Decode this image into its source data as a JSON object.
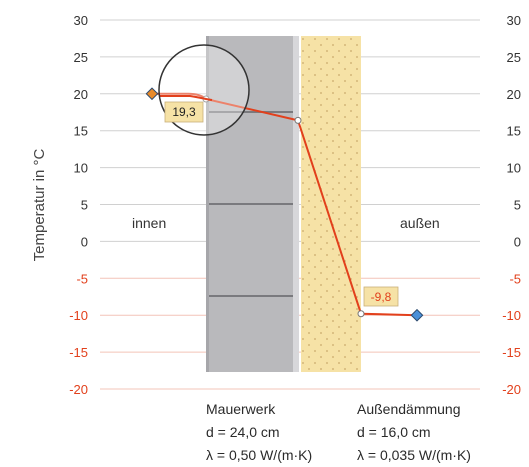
{
  "y_axis": {
    "label": "Temperatur in °C",
    "min": -20,
    "max": 30,
    "step": 5,
    "ticks": [
      "30",
      "25",
      "20",
      "15",
      "10",
      "5",
      "0",
      "-5",
      "-10",
      "-15",
      "-20"
    ],
    "positive_color": "#333333",
    "negative_color": "#e2401c"
  },
  "zones": {
    "inside": "innen",
    "outside": "außen"
  },
  "materials": [
    {
      "id": "mauerwerk",
      "name": "Mauerwerk",
      "thickness": "d = 24,0 cm",
      "lambda": "λ = 0,50 W/(m·K)",
      "color": "#b9b9bc"
    },
    {
      "id": "daemmung",
      "name": "Außendämmung",
      "thickness": "d = 16,0 cm",
      "lambda": "λ = 0,035 W/(m·K)",
      "color": "#f6e2a6"
    }
  ],
  "callouts": {
    "inner_surface": "19,3",
    "outer_surface": "-9,8"
  },
  "chart_data": {
    "type": "line",
    "series": [
      {
        "points": [
          {
            "position": "innen",
            "temperature": 20.0
          },
          {
            "position": "Innenoberfläche",
            "temperature": 19.3
          },
          {
            "position": "Mauerwerk / Dämmung",
            "temperature": 16.4
          },
          {
            "position": "Außenoberfläche",
            "temperature": -9.8
          },
          {
            "position": "außen",
            "temperature": -10.0
          }
        ],
        "color": "#e2401c"
      }
    ],
    "ylabel": "Temperatur in °C",
    "ylim": [
      -20,
      30
    ],
    "grid": true
  }
}
